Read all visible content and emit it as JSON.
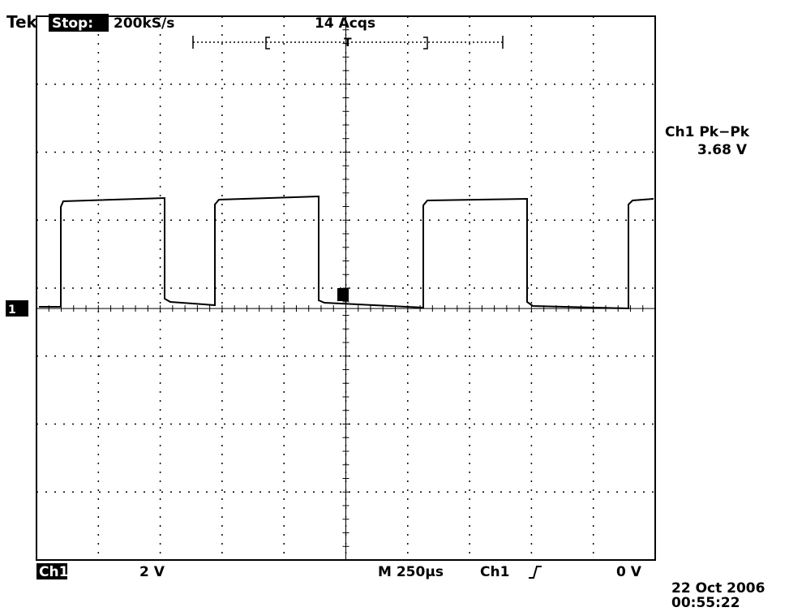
{
  "header": {
    "brand": "Tek",
    "state": "Stop:",
    "sample_rate": "200kS/s",
    "acquisitions": "14 Acqs"
  },
  "measurement": {
    "label": "Ch1 Pk−Pk",
    "value": "3.68 V"
  },
  "footer": {
    "channel": "Ch1",
    "volts_per_div": "2 V",
    "timebase": "M 250µs",
    "trigger_source": "Ch1",
    "trigger_level": "0 V",
    "date": "22 Oct 2006",
    "time": "00:55:22"
  },
  "markers": {
    "trigger": "T",
    "channel": "1"
  }
}
